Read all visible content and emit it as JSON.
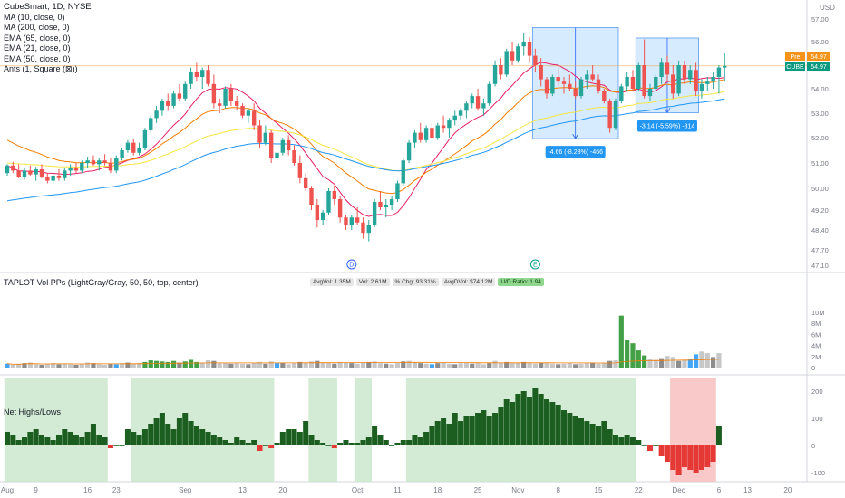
{
  "header": {
    "symbol_line": "CubeSmart, 1D, NYSE",
    "indicators": [
      "MA (10, close, 0)",
      "MA (200, close, 0)",
      "EMA (65, close, 0)",
      "EMA (21, close, 0)",
      "EMA (50, close, 0)",
      "Ants (1, Square (⊠))"
    ],
    "currency": "USD"
  },
  "price_tags": {
    "pre_label": "Pre",
    "pre_value": "54.97",
    "cube_label": "CUBE",
    "cube_value": "54.97",
    "color_orange": "#f7931a",
    "color_teal": "#089981"
  },
  "volume_pane": {
    "title": "TAPLOT Vol PPs (LightGray/Gray, 50, 50, top, center)",
    "stats": [
      "AvgVol: 1.35M",
      "Vol: 2.61M",
      "% Chg: 93.31%",
      "AvgDVol: $74.12M",
      "U/D Ratio: 1.94"
    ]
  },
  "net_pane": {
    "title": "Net Highs/Lows"
  },
  "markers": [
    {
      "label": "D",
      "bar": 60
    },
    {
      "label": "E",
      "bar": 92
    }
  ],
  "measures": [
    {
      "text": "-4.66 (-8.23%) -466",
      "from": 56.62,
      "to": 51.96,
      "bar_start": 92,
      "bar_end": 106
    },
    {
      "text": "-3.14 (-5.59%) -314",
      "from": 56.16,
      "to": 53.02,
      "bar_start": 110,
      "bar_end": 120
    }
  ],
  "chart_data": {
    "type": "candlestick",
    "x_ticks": [
      {
        "label": "Aug",
        "bar": 0
      },
      {
        "label": "9",
        "bar": 5
      },
      {
        "label": "16",
        "bar": 14
      },
      {
        "label": "23",
        "bar": 19
      },
      {
        "label": "Sep",
        "bar": 31
      },
      {
        "label": "13",
        "bar": 41
      },
      {
        "label": "20",
        "bar": 48
      },
      {
        "label": "Oct",
        "bar": 61
      },
      {
        "label": "11",
        "bar": 68
      },
      {
        "label": "18",
        "bar": 75
      },
      {
        "label": "25",
        "bar": 82
      },
      {
        "label": "Nov",
        "bar": 89
      },
      {
        "label": "8",
        "bar": 96
      },
      {
        "label": "15",
        "bar": 103
      },
      {
        "label": "22",
        "bar": 110
      },
      {
        "label": "Dec",
        "bar": 117
      },
      {
        "label": "6",
        "bar": 124
      },
      {
        "label": "13",
        "bar": 129
      },
      {
        "label": "20",
        "bar": 136
      }
    ],
    "price_axis": {
      "ticks": [
        57.0,
        56.0,
        55.0,
        54.0,
        53.0,
        52.0,
        51.0,
        50.0,
        49.2,
        48.4,
        47.7,
        47.1
      ]
    },
    "volume_axis": {
      "ticks": [
        "10M",
        "8M",
        "6M",
        "4M",
        "2M",
        "0"
      ]
    },
    "net_axis": {
      "ticks": [
        "200",
        "100",
        "0",
        "-100"
      ]
    },
    "ohlc": [
      [
        50.6,
        50.95,
        50.5,
        50.9
      ],
      [
        50.9,
        51.05,
        50.6,
        50.7
      ],
      [
        50.7,
        50.95,
        50.4,
        50.45
      ],
      [
        50.45,
        50.8,
        50.35,
        50.7
      ],
      [
        50.7,
        50.9,
        50.5,
        50.55
      ],
      [
        50.55,
        50.85,
        50.3,
        50.75
      ],
      [
        50.75,
        50.95,
        50.4,
        50.45
      ],
      [
        50.45,
        50.6,
        50.2,
        50.3
      ],
      [
        50.3,
        50.6,
        50.15,
        50.5
      ],
      [
        50.5,
        50.75,
        50.3,
        50.4
      ],
      [
        50.4,
        50.8,
        50.3,
        50.7
      ],
      [
        50.7,
        50.95,
        50.5,
        50.8
      ],
      [
        50.8,
        51.0,
        50.6,
        50.7
      ],
      [
        50.7,
        51.1,
        50.6,
        51.0
      ],
      [
        51.0,
        51.25,
        50.8,
        51.1
      ],
      [
        51.1,
        51.3,
        50.9,
        50.95
      ],
      [
        50.95,
        51.2,
        50.7,
        51.1
      ],
      [
        51.1,
        51.35,
        50.9,
        51.0
      ],
      [
        51.0,
        51.2,
        50.6,
        50.7
      ],
      [
        50.7,
        51.3,
        50.6,
        51.2
      ],
      [
        51.2,
        51.6,
        51.1,
        51.5
      ],
      [
        51.5,
        51.9,
        51.4,
        51.8
      ],
      [
        51.8,
        51.95,
        51.3,
        51.4
      ],
      [
        51.4,
        51.8,
        51.3,
        51.6
      ],
      [
        51.6,
        52.4,
        51.5,
        52.3
      ],
      [
        52.3,
        52.9,
        52.2,
        52.8
      ],
      [
        52.8,
        53.3,
        52.6,
        53.1
      ],
      [
        53.1,
        53.6,
        52.9,
        53.5
      ],
      [
        53.5,
        53.8,
        53.1,
        53.3
      ],
      [
        53.3,
        53.9,
        53.2,
        53.8
      ],
      [
        53.8,
        54.2,
        53.5,
        53.6
      ],
      [
        53.6,
        54.3,
        53.5,
        54.2
      ],
      [
        54.2,
        54.9,
        54.0,
        54.7
      ],
      [
        54.7,
        55.1,
        54.3,
        54.5
      ],
      [
        54.5,
        54.9,
        54.0,
        54.8
      ],
      [
        54.8,
        55.0,
        54.1,
        54.2
      ],
      [
        54.2,
        54.6,
        53.2,
        53.4
      ],
      [
        53.4,
        53.6,
        53.0,
        53.3
      ],
      [
        53.3,
        54.1,
        53.2,
        54.0
      ],
      [
        54.0,
        54.2,
        53.3,
        53.5
      ],
      [
        53.5,
        53.7,
        53.1,
        53.3
      ],
      [
        53.3,
        53.4,
        52.8,
        52.9
      ],
      [
        52.9,
        53.2,
        52.6,
        53.1
      ],
      [
        53.1,
        53.4,
        52.3,
        52.5
      ],
      [
        52.5,
        52.7,
        51.6,
        51.8
      ],
      [
        51.8,
        52.5,
        51.7,
        52.2
      ],
      [
        52.2,
        52.3,
        51.0,
        51.2
      ],
      [
        51.2,
        51.6,
        51.0,
        51.4
      ],
      [
        51.4,
        52.0,
        51.3,
        51.9
      ],
      [
        51.9,
        52.1,
        51.3,
        51.5
      ],
      [
        51.5,
        51.7,
        50.9,
        51.0
      ],
      [
        51.0,
        51.3,
        50.2,
        50.4
      ],
      [
        50.4,
        50.6,
        49.9,
        50.0
      ],
      [
        50.0,
        50.1,
        49.2,
        49.4
      ],
      [
        49.4,
        49.6,
        48.5,
        48.8
      ],
      [
        48.8,
        49.2,
        48.6,
        49.1
      ],
      [
        49.1,
        50.0,
        49.0,
        49.9
      ],
      [
        49.9,
        50.1,
        49.4,
        49.6
      ],
      [
        49.6,
        49.7,
        48.7,
        48.9
      ],
      [
        48.9,
        49.0,
        48.4,
        48.6
      ],
      [
        48.6,
        49.0,
        48.4,
        48.9
      ],
      [
        48.9,
        49.3,
        48.6,
        48.7
      ],
      [
        48.7,
        48.9,
        48.1,
        48.3
      ],
      [
        48.3,
        48.8,
        48.0,
        48.6
      ],
      [
        48.6,
        49.6,
        48.5,
        49.5
      ],
      [
        49.5,
        49.9,
        49.2,
        49.3
      ],
      [
        49.3,
        49.6,
        48.9,
        49.4
      ],
      [
        49.4,
        49.7,
        49.2,
        49.6
      ],
      [
        49.6,
        50.3,
        49.5,
        50.2
      ],
      [
        50.2,
        51.2,
        50.1,
        51.1
      ],
      [
        51.1,
        51.9,
        51.0,
        51.8
      ],
      [
        51.8,
        52.3,
        51.6,
        52.2
      ],
      [
        52.2,
        52.6,
        51.8,
        51.9
      ],
      [
        51.9,
        52.5,
        51.8,
        52.4
      ],
      [
        52.4,
        52.6,
        51.9,
        52.0
      ],
      [
        52.0,
        52.6,
        51.9,
        52.5
      ],
      [
        52.5,
        52.9,
        52.2,
        52.4
      ],
      [
        52.4,
        52.8,
        52.0,
        52.7
      ],
      [
        52.7,
        53.1,
        52.5,
        52.9
      ],
      [
        52.9,
        53.2,
        52.7,
        53.1
      ],
      [
        53.1,
        53.5,
        52.8,
        53.4
      ],
      [
        53.4,
        53.8,
        53.2,
        53.7
      ],
      [
        53.7,
        54.0,
        53.1,
        53.2
      ],
      [
        53.2,
        53.6,
        52.9,
        53.4
      ],
      [
        53.4,
        54.3,
        53.3,
        54.2
      ],
      [
        54.2,
        55.2,
        54.1,
        55.0
      ],
      [
        55.0,
        55.3,
        54.4,
        54.6
      ],
      [
        54.6,
        55.7,
        54.5,
        55.6
      ],
      [
        55.6,
        56.0,
        55.0,
        55.2
      ],
      [
        55.2,
        55.9,
        55.1,
        55.8
      ],
      [
        55.8,
        56.4,
        55.4,
        56.0
      ],
      [
        56.0,
        56.2,
        55.1,
        55.4
      ],
      [
        55.4,
        55.7,
        54.7,
        55.0
      ],
      [
        55.0,
        55.3,
        54.1,
        54.4
      ],
      [
        54.4,
        54.5,
        53.6,
        53.8
      ],
      [
        53.8,
        54.6,
        53.7,
        54.5
      ],
      [
        54.5,
        54.9,
        54.1,
        54.3
      ],
      [
        54.3,
        54.5,
        53.8,
        54.2
      ],
      [
        54.2,
        54.6,
        53.9,
        54.0
      ],
      [
        54.0,
        54.3,
        53.6,
        53.7
      ],
      [
        53.7,
        54.5,
        53.6,
        54.4
      ],
      [
        54.4,
        54.8,
        54.0,
        54.6
      ],
      [
        54.6,
        55.0,
        54.3,
        54.4
      ],
      [
        54.4,
        54.6,
        53.8,
        53.9
      ],
      [
        53.9,
        54.0,
        53.4,
        53.5
      ],
      [
        53.5,
        53.6,
        52.2,
        52.4
      ],
      [
        52.4,
        53.6,
        52.3,
        53.5
      ],
      [
        53.5,
        54.2,
        53.4,
        54.1
      ],
      [
        54.1,
        54.7,
        53.9,
        54.5
      ],
      [
        54.5,
        54.8,
        53.9,
        54.0
      ],
      [
        54.0,
        55.1,
        53.9,
        55.0
      ],
      [
        55.0,
        56.1,
        53.6,
        53.7
      ],
      [
        53.7,
        54.2,
        53.5,
        54.0
      ],
      [
        54.0,
        54.6,
        53.9,
        54.5
      ],
      [
        54.5,
        55.3,
        54.2,
        55.1
      ],
      [
        55.1,
        55.4,
        54.3,
        54.6
      ],
      [
        54.6,
        55.0,
        53.6,
        53.8
      ],
      [
        53.8,
        55.2,
        53.7,
        55.0
      ],
      [
        55.0,
        55.2,
        54.2,
        54.4
      ],
      [
        54.4,
        55.0,
        54.2,
        54.8
      ],
      [
        54.8,
        55.1,
        53.7,
        53.9
      ],
      [
        53.9,
        54.4,
        53.6,
        54.2
      ],
      [
        54.2,
        54.5,
        53.9,
        54.3
      ],
      [
        54.3,
        54.7,
        54.0,
        54.5
      ],
      [
        54.5,
        55.0,
        53.8,
        54.9
      ],
      [
        54.9,
        55.5,
        54.3,
        54.97
      ]
    ],
    "volume_m": [
      0.7,
      0.5,
      0.6,
      0.8,
      0.9,
      0.6,
      0.5,
      0.7,
      0.8,
      0.6,
      0.7,
      0.6,
      0.5,
      0.7,
      0.9,
      0.8,
      0.6,
      0.5,
      0.7,
      0.6,
      0.8,
      0.9,
      0.7,
      0.8,
      1.0,
      1.3,
      1.2,
      1.1,
      1.0,
      1.2,
      0.9,
      1.1,
      1.4,
      1.0,
      0.9,
      1.3,
      1.2,
      0.8,
      0.9,
      0.7,
      0.8,
      0.7,
      0.6,
      0.9,
      1.0,
      0.7,
      1.1,
      0.8,
      0.9,
      0.6,
      0.8,
      1.0,
      0.9,
      1.1,
      1.2,
      0.9,
      0.8,
      0.7,
      1.0,
      0.9,
      0.8,
      0.7,
      0.9,
      1.0,
      1.1,
      0.8,
      0.7,
      0.6,
      0.8,
      1.1,
      1.2,
      0.9,
      0.8,
      0.7,
      0.6,
      0.8,
      0.9,
      0.7,
      0.6,
      0.8,
      0.9,
      0.7,
      0.8,
      0.6,
      0.8,
      1.2,
      0.9,
      1.0,
      0.8,
      0.9,
      1.0,
      0.8,
      0.7,
      0.9,
      0.8,
      0.7,
      0.6,
      0.7,
      0.8,
      0.6,
      0.7,
      0.8,
      0.9,
      0.7,
      0.8,
      1.2,
      1.3,
      9.4,
      5.0,
      4.4,
      3.1,
      2.2,
      1.6,
      1.4,
      1.7,
      2.1,
      1.9,
      1.2,
      1.4,
      1.6,
      2.4,
      2.9,
      2.6,
      1.9,
      2.61
    ],
    "volume_colors": "k=gray, l=lightgray, g=green, b=blue, r=red",
    "net_highs_lows": [
      50,
      40,
      20,
      30,
      50,
      60,
      40,
      30,
      20,
      40,
      60,
      50,
      40,
      30,
      50,
      80,
      40,
      30,
      -10,
      0,
      0,
      60,
      50,
      40,
      60,
      80,
      100,
      120,
      80,
      60,
      100,
      120,
      90,
      70,
      60,
      50,
      40,
      30,
      20,
      10,
      30,
      20,
      10,
      20,
      -20,
      0,
      -10,
      10,
      50,
      60,
      60,
      50,
      90,
      40,
      20,
      10,
      0,
      -10,
      10,
      20,
      10,
      10,
      20,
      30,
      70,
      40,
      20,
      0,
      10,
      20,
      20,
      40,
      30,
      50,
      70,
      90,
      100,
      80,
      120,
      90,
      110,
      110,
      120,
      130,
      110,
      120,
      140,
      170,
      160,
      190,
      200,
      180,
      210,
      190,
      170,
      160,
      150,
      130,
      120,
      110,
      100,
      90,
      80,
      70,
      90,
      60,
      40,
      30,
      40,
      30,
      20,
      0,
      -20,
      0,
      -40,
      -60,
      -90,
      -110,
      -80,
      -90,
      -100,
      -90,
      -80,
      -60,
      70
    ],
    "shaded_bands": [
      {
        "start": 0,
        "end": 17,
        "color": "green"
      },
      {
        "start": 22,
        "end": 46,
        "color": "green"
      },
      {
        "start": 53,
        "end": 57,
        "color": "green"
      },
      {
        "start": 61,
        "end": 63,
        "color": "green"
      },
      {
        "start": 70,
        "end": 109,
        "color": "green"
      },
      {
        "start": 116,
        "end": 123,
        "color": "red"
      }
    ],
    "horizontal_line": 54.97
  }
}
